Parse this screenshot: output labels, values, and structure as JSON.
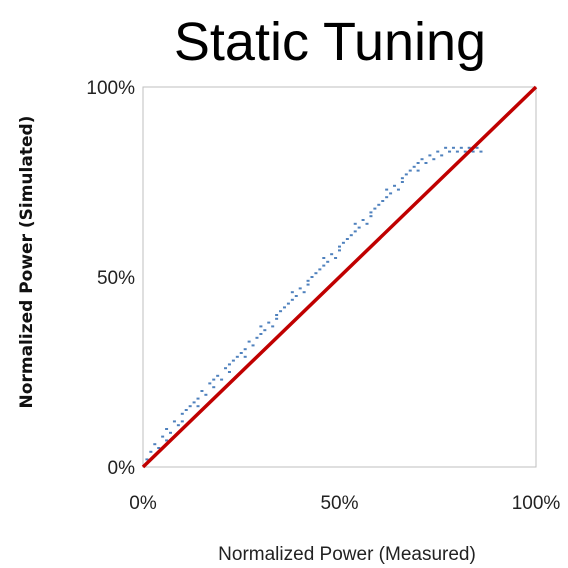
{
  "chart_data": {
    "type": "scatter",
    "title": "Static Tuning",
    "xlabel": "Normalized Power (Measured)",
    "ylabel": "Normalized Power (Simulated)",
    "xlim": [
      0,
      100
    ],
    "ylim": [
      0,
      100
    ],
    "x_ticks": [
      {
        "value": 0,
        "label": "0%"
      },
      {
        "value": 50,
        "label": "50%"
      },
      {
        "value": 100,
        "label": "100%"
      }
    ],
    "y_ticks": [
      {
        "value": 0,
        "label": "0%"
      },
      {
        "value": 50,
        "label": "50%"
      },
      {
        "value": 100,
        "label": "100%"
      }
    ],
    "grid": false,
    "scatter_color": "#4f81bd",
    "reference_line": {
      "type": "y=x",
      "color": "#c00000",
      "x": [
        0,
        100
      ],
      "y": [
        0,
        100
      ]
    },
    "series": [
      {
        "points": [
          [
            1,
            2
          ],
          [
            2,
            4
          ],
          [
            3,
            3
          ],
          [
            3,
            6
          ],
          [
            4,
            5
          ],
          [
            5,
            8
          ],
          [
            6,
            7
          ],
          [
            6,
            10
          ],
          [
            7,
            9
          ],
          [
            8,
            12
          ],
          [
            9,
            11
          ],
          [
            10,
            14
          ],
          [
            10,
            12
          ],
          [
            11,
            15
          ],
          [
            12,
            16
          ],
          [
            13,
            17
          ],
          [
            14,
            18
          ],
          [
            14,
            16
          ],
          [
            15,
            20
          ],
          [
            16,
            19
          ],
          [
            17,
            22
          ],
          [
            18,
            21
          ],
          [
            18,
            23
          ],
          [
            19,
            24
          ],
          [
            20,
            23
          ],
          [
            21,
            26
          ],
          [
            22,
            27
          ],
          [
            22,
            25
          ],
          [
            23,
            28
          ],
          [
            24,
            29
          ],
          [
            25,
            30
          ],
          [
            26,
            31
          ],
          [
            26,
            29
          ],
          [
            27,
            33
          ],
          [
            28,
            32
          ],
          [
            29,
            34
          ],
          [
            30,
            35
          ],
          [
            30,
            37
          ],
          [
            31,
            36
          ],
          [
            32,
            38
          ],
          [
            33,
            37
          ],
          [
            34,
            40
          ],
          [
            34,
            39
          ],
          [
            35,
            41
          ],
          [
            36,
            42
          ],
          [
            37,
            43
          ],
          [
            38,
            44
          ],
          [
            38,
            46
          ],
          [
            39,
            45
          ],
          [
            40,
            47
          ],
          [
            41,
            46
          ],
          [
            42,
            49
          ],
          [
            42,
            48
          ],
          [
            43,
            50
          ],
          [
            44,
            51
          ],
          [
            45,
            52
          ],
          [
            46,
            53
          ],
          [
            46,
            55
          ],
          [
            47,
            54
          ],
          [
            48,
            56
          ],
          [
            49,
            55
          ],
          [
            50,
            58
          ],
          [
            50,
            57
          ],
          [
            51,
            59
          ],
          [
            52,
            60
          ],
          [
            53,
            61
          ],
          [
            54,
            62
          ],
          [
            54,
            64
          ],
          [
            55,
            63
          ],
          [
            56,
            65
          ],
          [
            57,
            64
          ],
          [
            58,
            67
          ],
          [
            58,
            66
          ],
          [
            59,
            68
          ],
          [
            60,
            69
          ],
          [
            61,
            70
          ],
          [
            62,
            71
          ],
          [
            62,
            73
          ],
          [
            63,
            72
          ],
          [
            64,
            74
          ],
          [
            65,
            73
          ],
          [
            66,
            76
          ],
          [
            66,
            75
          ],
          [
            67,
            77
          ],
          [
            68,
            78
          ],
          [
            69,
            79
          ],
          [
            70,
            80
          ],
          [
            70,
            78
          ],
          [
            71,
            81
          ],
          [
            72,
            80
          ],
          [
            73,
            82
          ],
          [
            74,
            81
          ],
          [
            75,
            83
          ],
          [
            76,
            82
          ],
          [
            77,
            84
          ],
          [
            78,
            83
          ],
          [
            79,
            84
          ],
          [
            80,
            83
          ],
          [
            81,
            84
          ],
          [
            82,
            83
          ],
          [
            83,
            84
          ],
          [
            84,
            83
          ],
          [
            85,
            84
          ],
          [
            86,
            83
          ]
        ]
      }
    ]
  }
}
